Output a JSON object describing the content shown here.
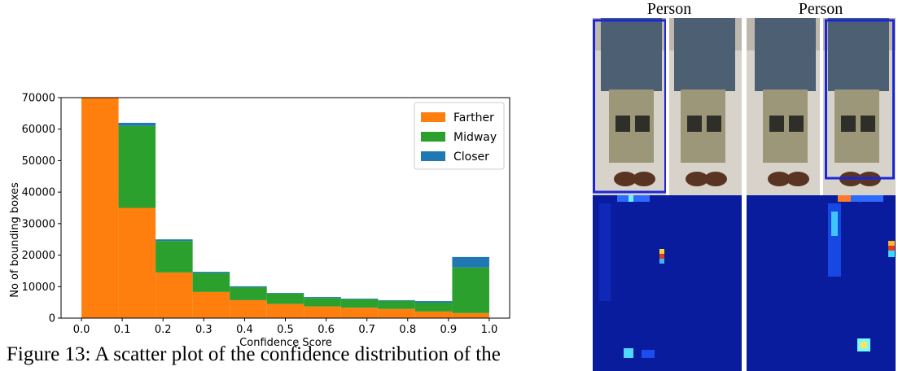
{
  "chart_data": {
    "type": "bar",
    "stacked": true,
    "ylabel": "No of bounding boxes",
    "xlabel": "Confidence Score",
    "ylim": [
      0,
      70000
    ],
    "xlim": [
      0.0,
      1.0
    ],
    "yticks": [
      0,
      10000,
      20000,
      30000,
      40000,
      50000,
      60000,
      70000
    ],
    "xticks": [
      "0.0",
      "0.1",
      "0.2",
      "0.3",
      "0.4",
      "0.5",
      "0.6",
      "0.7",
      "0.8",
      "0.9",
      "1.0"
    ],
    "bin_edges": [
      0.0,
      0.0909,
      0.1818,
      0.2727,
      0.3636,
      0.4545,
      0.5455,
      0.6364,
      0.7273,
      0.8182,
      0.9091,
      1.0
    ],
    "legend_position": "top-right",
    "series": [
      {
        "name": "Farther",
        "color": "#ff7f0e",
        "values": [
          70000,
          35000,
          14500,
          8300,
          5700,
          4500,
          3700,
          3300,
          2900,
          2100,
          1600
        ]
      },
      {
        "name": "Midway",
        "color": "#2ca02c",
        "values": [
          0,
          26000,
          10000,
          6000,
          4100,
          3300,
          2700,
          2700,
          2600,
          2800,
          14500
        ]
      },
      {
        "name": "Closer",
        "color": "#1f77b4",
        "values": [
          0,
          1000,
          500,
          400,
          300,
          200,
          300,
          200,
          200,
          500,
          3300
        ]
      }
    ]
  },
  "caption": "Figure 13: A scatter plot of the confidence distribution of the",
  "panels": [
    {
      "label": "Person"
    },
    {
      "label": "Person"
    }
  ]
}
